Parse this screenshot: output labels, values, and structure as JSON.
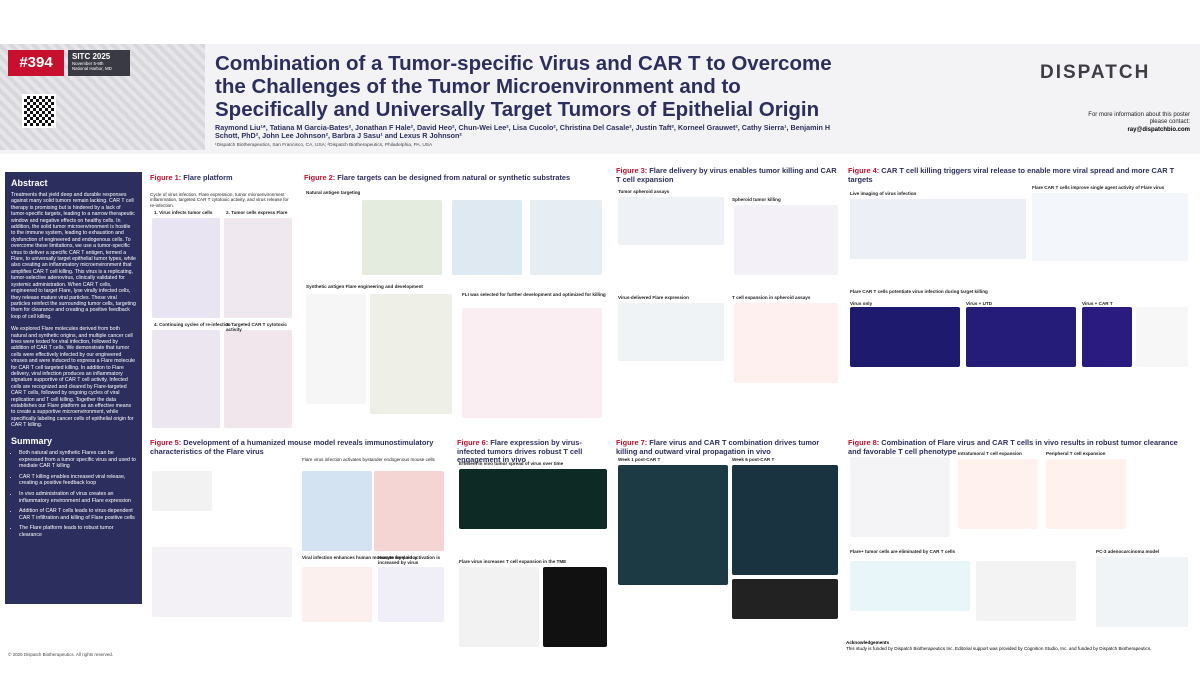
{
  "header": {
    "badge": "#394",
    "conference": "SITC 2025",
    "dates": "November 5-9th",
    "location": "National Harbor, MD",
    "title": "Combination of a Tumor-specific Virus and CAR T to Overcome the Challenges of the Tumor Microenvironment and to Specifically and Universally Target Tumors of Epithelial Origin",
    "authors": "Raymond Liu¹*, Tatiana M Garcia-Bates², Jonathan F Hale², David Heo², Chun-Wei Lee², Lisa Cucolo², Christina Del Casale², Justin Taft², Korneel Grauwet², Cathy Sierra¹, Benjamin H Schott, PhD², John Lee Johnson², Barbra J Sasu¹ and Lexus R Johnson²",
    "affiliations": "¹Dispatch Biotherapeutics, San Francisco, CA, USA; ²Dispatch Biotherapeutics, Philadelphia, PA, USA",
    "logo": "DISPATCH",
    "contact": "For more information about this poster please contact:",
    "email": "ray@dispatchbio.com"
  },
  "abstract": {
    "heading": "Abstract",
    "paragraphs": [
      "Treatments that yield deep and durable responses against many solid tumors remain lacking. CAR T cell therapy is promising but is hindered by a lack of tumor-specific targets, leading to a narrow therapeutic window and negative effects on healthy cells. In addition, the solid tumor microenvironment is hostile to the immune system, leading to exhaustion and dysfunction of engineered and endogenous cells. To overcome these limitations, we use a tumor-specific virus to deliver a specific CAR T antigen, termed a Flare, to universally target epithelial tumor types, while also creating an inflammatory microenvironment that amplifies CAR T cell killing. This virus is a replicating, tumor-selective adenovirus, clinically validated for systemic administration. When CAR T cells, engineered to target Flare, lyse virally infected cells, they release mature viral particles. These viral particles reinfect the surrounding tumor cells, targeting them for clearance and creating a positive feedback loop of cell killing.",
      "We explored Flare molecules derived from both natural and synthetic origins, and multiple cancer cell lines were tested for viral infection, followed by addition of CAR T cells. We demonstrate that tumor cells were effectively infected by our engineered viruses and were induced to express a Flare molecule for CAR T cell targeted killing. In addition to Flare delivery, viral infection produces an inflammatory signature supportive of CAR T cell activity. Infected cells are recognized and cleared by Flare-targeted CAR T cells, followed by ongoing cycles of viral replication and T cell killing. Together the data establishes our Flare platform as an effective means to create a supportive microenvironment, while specifically labeling cancer cells of epithelial origin for CAR T killing."
    ]
  },
  "summary": {
    "heading": "Summary",
    "items": [
      "Both natural and synthetic Flares can be expressed from a tumor specific virus and used to mediate CAR T killing",
      "CAR T killing enables increased viral release, creating a positive feedback loop",
      "In vivo administration of virus creates an inflammatory environment and Flare expression",
      "Addition of CAR T cells leads to virus-dependent CAR T infiltration and killing of Flare positive cells",
      "The Flare platform leads to robust tumor clearance"
    ]
  },
  "copyright": "© 2025 Dispatch Biotherapeutics. All rights reserved.",
  "figures": [
    {
      "label": "Figure 1:",
      "title": "Flare platform",
      "sections": [
        "Cycle of virus infection, Flare expression, tumor microenvironment inflammation, targeted CAR T cytotoxic activity, and virus release for re-infection.",
        "1. Virus infects tumor cells",
        "2. Tumor cells express Flare",
        "4. Continuing cycles of re-infection",
        "3. Targeted CAR T cytotoxic activity"
      ]
    },
    {
      "label": "Figure 2:",
      "title": "Flare targets can be designed from natural or synthetic substrates",
      "sections": [
        "Natural antigen targeting",
        "Synthetic antigen Flare engineering and development",
        "FLI was selected for further development and optimized for killing"
      ]
    },
    {
      "label": "Figure 3:",
      "title": "Flare delivery by virus enables tumor killing and CAR T cell expansion",
      "sections": [
        "Tumor spheroid assays",
        "Spheroid tumor killing",
        "Virus-delivered Flare expression",
        "T cell expansion in spheroid assays"
      ]
    },
    {
      "label": "Figure 4:",
      "title": "CAR T cell killing triggers viral release to enable more viral spread and more CAR T targets",
      "sections": [
        "Live imaging of virus infection",
        "Flare CAR T cells improve single agent activity of Flare virus",
        "Flare CAR T cells potentiate virus infection during target killing",
        "Virus only",
        "Virus + UTD",
        "Virus + CAR T"
      ]
    },
    {
      "label": "Figure 5:",
      "title": "Development of a humanized mouse model reveals immunostimulatory characteristics of the Flare virus",
      "sections": [
        "Flare virus infection activates bystander endogenous mouse cells",
        "Viral infection enhances human monocyte frequency",
        "Human myeloid activation is increased by virus"
      ]
    },
    {
      "label": "Figure 6:",
      "title": "Flare expression by virus-infected tumors drives robust T cell engagement in vivo",
      "sections": [
        "Efficient in vivo tumor spread of virus over time",
        "Flare virus increases T cell expansion in the TME"
      ]
    },
    {
      "label": "Figure 7:",
      "title": "Flare virus and CAR T combination drives tumor killing and outward viral propagation in vivo",
      "sections": [
        "Week 1 post-CAR T",
        "Week 6 post-CAR T"
      ]
    },
    {
      "label": "Figure 8:",
      "title": "Combination of Flare virus and CAR T cells in vivo results in robust tumor clearance and favorable T cell phenotype",
      "sections": [
        "Intratumoral T cell expansion",
        "Peripheral T cell expansion",
        "Flare+ tumor cells are eliminated by CAR T cells",
        "PC-3 adenocarcinoma model"
      ]
    }
  ],
  "acknowledgements": {
    "heading": "Acknowledgements",
    "text": "This study is funded by Dispatch Biotherapeutics Inc. Editorial support was provided by Cognition Studio, Inc. and funded by Dispatch Biotherapeutics."
  }
}
